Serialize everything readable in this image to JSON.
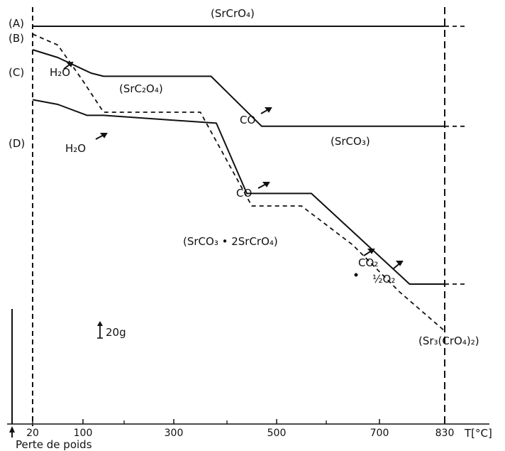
{
  "chart_data": {
    "type": "line",
    "xlabel": "T[°C]",
    "ylabel_note": "Perte de poids",
    "scale_bar": "20g",
    "x_ticks": [
      "20",
      "100",
      "300",
      "500",
      "700",
      "830"
    ],
    "x_minor_ticks": [
      200,
      400,
      600
    ],
    "xlim": [
      20,
      830
    ],
    "ylim_weight_g": [
      -195,
      0
    ],
    "series": [
      {
        "name": "(A)",
        "style": "solid",
        "points": [
          [
            20,
            0
          ],
          [
            830,
            0
          ]
        ],
        "extension": [
          [
            830,
            0
          ],
          [
            870,
            0
          ]
        ]
      },
      {
        "name": "(B)",
        "style": "dashed",
        "points": [
          [
            20,
            -5
          ],
          [
            60,
            -12
          ],
          [
            100,
            -35
          ],
          [
            150,
            -55
          ],
          [
            350,
            -55
          ],
          [
            450,
            -115
          ],
          [
            550,
            -115
          ],
          [
            650,
            -140
          ],
          [
            740,
            -170
          ],
          [
            830,
            -195
          ]
        ]
      },
      {
        "name": "(C)",
        "style": "solid",
        "points": [
          [
            20,
            -15
          ],
          [
            60,
            -20
          ],
          [
            120,
            -30
          ],
          [
            150,
            -32
          ],
          [
            370,
            -32
          ],
          [
            470,
            -64
          ],
          [
            830,
            -64
          ]
        ],
        "extension": [
          [
            830,
            -64
          ],
          [
            870,
            -64
          ]
        ]
      },
      {
        "name": "(D)",
        "style": "solid",
        "points": [
          [
            20,
            -47
          ],
          [
            60,
            -50
          ],
          [
            110,
            -57
          ],
          [
            150,
            -57
          ],
          [
            380,
            -62
          ],
          [
            440,
            -107
          ],
          [
            570,
            -107
          ],
          [
            760,
            -165
          ],
          [
            800,
            -165
          ],
          [
            830,
            -165
          ]
        ],
        "extension": [
          [
            830,
            -165
          ],
          [
            870,
            -165
          ]
        ]
      }
    ],
    "annotations": [
      {
        "id": "srcro4",
        "text": "(SrCrO₄)"
      },
      {
        "id": "src2o4",
        "text": "(SrC₂O₄)"
      },
      {
        "id": "srco3",
        "text": "(SrCO₃)"
      },
      {
        "id": "mixed",
        "text": "(SrCO₃ • 2SrCrO₄)"
      },
      {
        "id": "sr3",
        "text": "(Sr₃(CrO₄)₂)"
      },
      {
        "id": "h2o_c",
        "text": "H₂O"
      },
      {
        "id": "h2o_d",
        "text": "H₂O"
      },
      {
        "id": "co_c",
        "text": "CO"
      },
      {
        "id": "co_d",
        "text": "CO"
      },
      {
        "id": "co2",
        "text": "CO₂"
      },
      {
        "id": "half_o2",
        "text": "½O₂"
      }
    ]
  }
}
